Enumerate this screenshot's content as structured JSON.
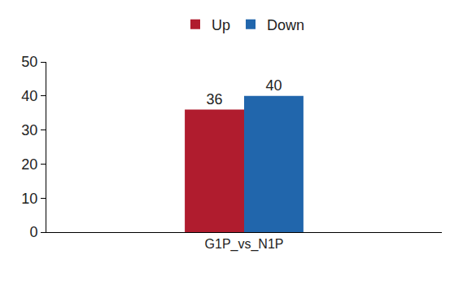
{
  "chart_data": {
    "type": "bar",
    "categories": [
      "G1P_vs_N1P"
    ],
    "series": [
      {
        "name": "Up",
        "color": "#b01c2e",
        "values": [
          36
        ]
      },
      {
        "name": "Down",
        "color": "#2166ac",
        "values": [
          40
        ]
      }
    ],
    "ylim": [
      0,
      50
    ],
    "yticks": [
      0,
      10,
      20,
      30,
      40,
      50
    ],
    "grid": false,
    "legend": "top",
    "data_labels": true
  }
}
